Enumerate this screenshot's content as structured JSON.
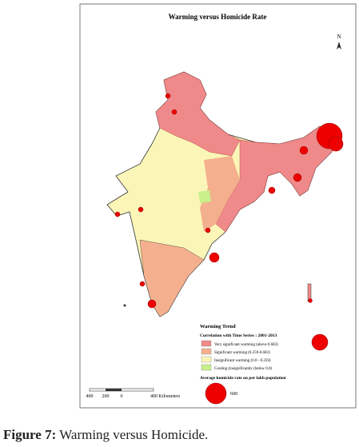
{
  "figure": {
    "title": "Warming versus Homicide Rate",
    "north": "N",
    "legend": {
      "title": "Warming Trend",
      "subtitle": "Correlation with Time Series : 2001-2013",
      "items": [
        {
          "label": "Very significant warming (above 0.683)",
          "color": "#f08a8a"
        },
        {
          "label": "Significant warming (0.259-0.683)",
          "color": "#f4b08e"
        },
        {
          "label": "Insignificant warming (0.0 - 0.259)",
          "color": "#fbf6b8"
        },
        {
          "label": "Cooling (insignificantly (below 0.0)",
          "color": "#c8f08a"
        }
      ],
      "bubble_title": "Average homicide rate on per lakh population",
      "bubble_label": "600"
    },
    "scale": [
      "400",
      "200",
      "0",
      "400 Kilometers"
    ],
    "caption": {
      "label": "Figure 7:",
      "text": "Warming versus Homicide."
    }
  }
}
